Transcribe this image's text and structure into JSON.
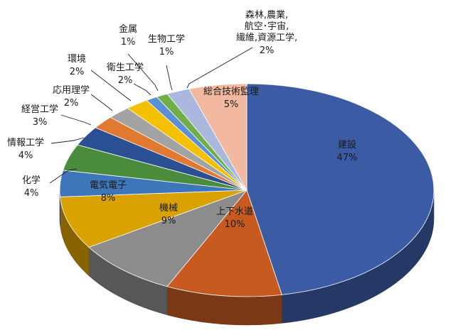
{
  "chart_data": {
    "type": "pie",
    "style": "3d",
    "slices": [
      {
        "label": "建設",
        "value": 47,
        "pct_label": "47%",
        "color": "#3b5ba5"
      },
      {
        "label": "上下水道",
        "value": 10,
        "pct_label": "10%",
        "color": "#c65a20"
      },
      {
        "label": "機械",
        "value": 9,
        "pct_label": "9%",
        "color": "#8c8c8c"
      },
      {
        "label": "電気電子",
        "value": 8,
        "pct_label": "8%",
        "color": "#d9a200"
      },
      {
        "label": "化学",
        "value": 4,
        "pct_label": "4%",
        "color": "#3e77b9"
      },
      {
        "label": "情報工学",
        "value": 4,
        "pct_label": "4%",
        "color": "#4a8c3c"
      },
      {
        "label": "経営工学",
        "value": 3,
        "pct_label": "3%",
        "color": "#2a4f92"
      },
      {
        "label": "応用理学",
        "value": 2,
        "pct_label": "2%",
        "color": "#e07a30"
      },
      {
        "label": "環境",
        "value": 2,
        "pct_label": "2%",
        "color": "#a3a3a3"
      },
      {
        "label": "衛生工学",
        "value": 2,
        "pct_label": "2%",
        "color": "#f5c000"
      },
      {
        "label": "金属",
        "value": 1,
        "pct_label": "1%",
        "color": "#5b8fd6"
      },
      {
        "label": "生物工学",
        "value": 1,
        "pct_label": "1%",
        "color": "#71ae48"
      },
      {
        "label": "森林,農業,\n航空･宇宙,\n繊維,資源工学,",
        "value": 2,
        "pct_label": "2%",
        "color": "#a9b8dc"
      },
      {
        "label": "総合技術監理",
        "value": 5,
        "pct_label": "5%",
        "color": "#f2b8a0"
      }
    ]
  }
}
